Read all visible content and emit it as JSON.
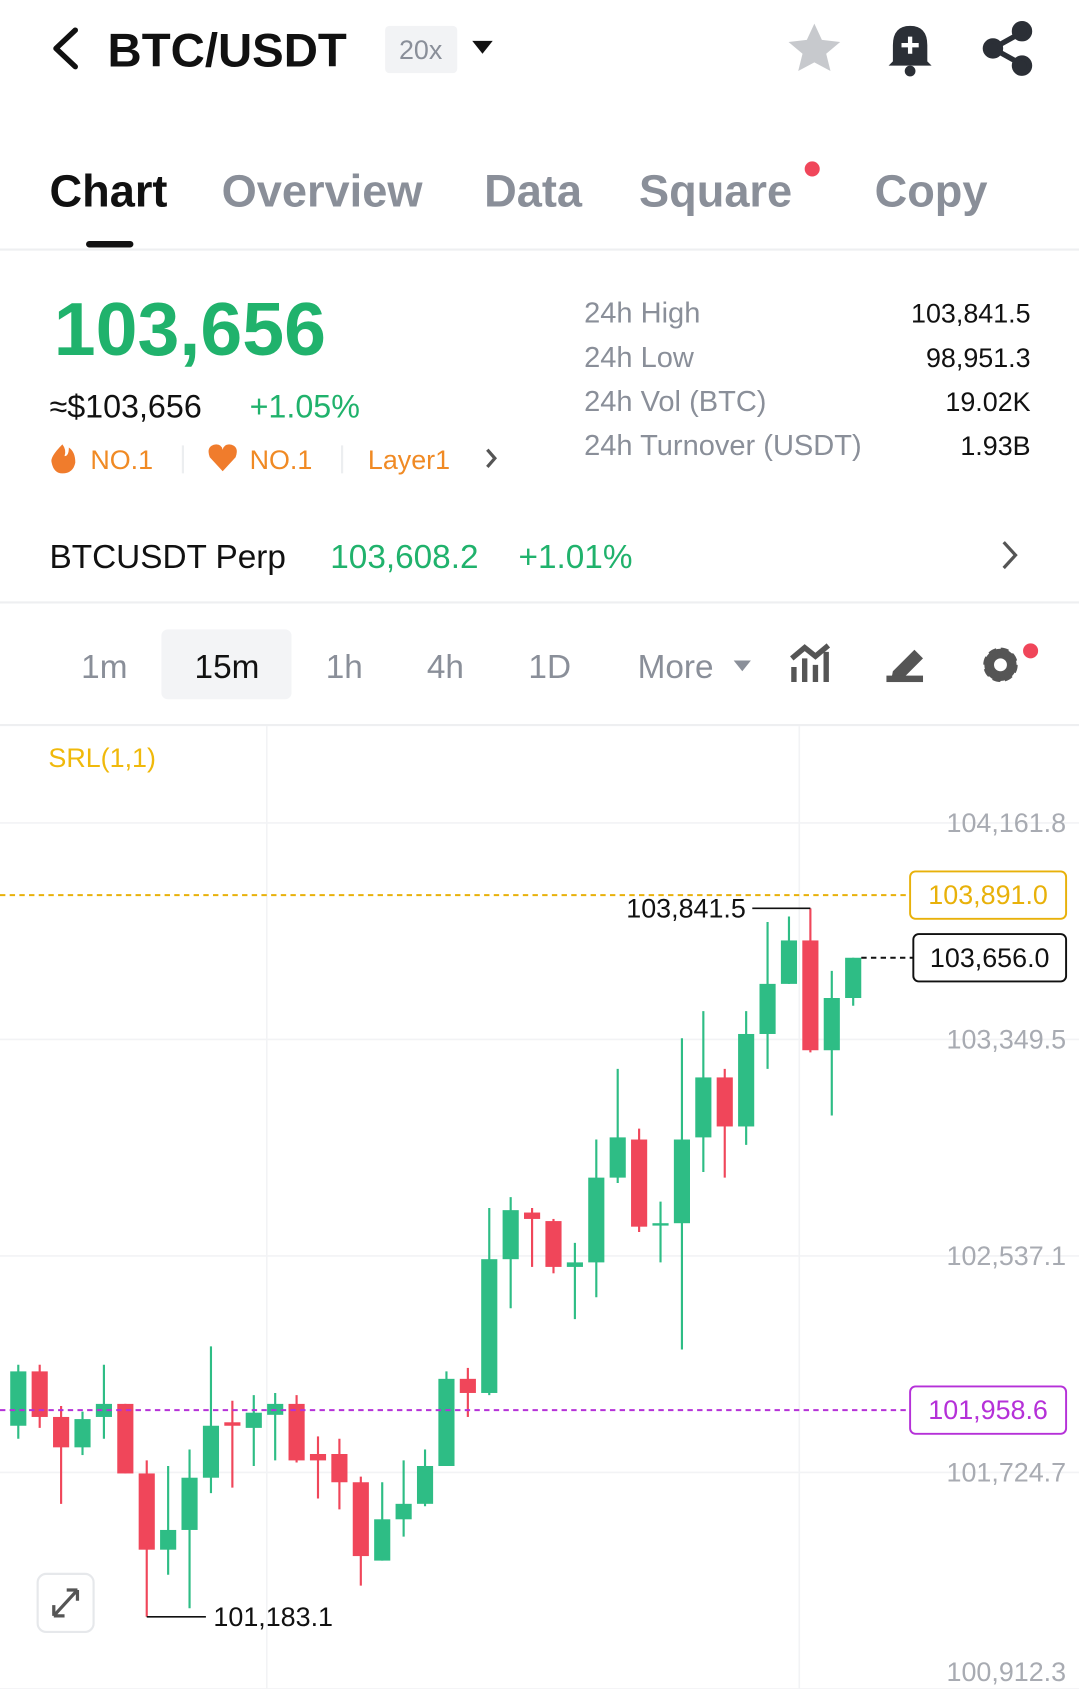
{
  "header": {
    "pair": "BTC/USDT",
    "leverage": "20x"
  },
  "tabs": [
    "Chart",
    "Overview",
    "Data",
    "Square",
    "Copy"
  ],
  "price": {
    "last": "103,656",
    "usd": "≈$103,656",
    "change": "+1.05%",
    "badges": [
      "NO.1",
      "NO.1",
      "Layer1"
    ]
  },
  "stats": [
    {
      "label": "24h High",
      "value": "103,841.5"
    },
    {
      "label": "24h Low",
      "value": "98,951.3"
    },
    {
      "label": "24h Vol (BTC)",
      "value": "19.02K"
    },
    {
      "label": "24h Turnover (USDT)",
      "value": "1.93B"
    }
  ],
  "perp": {
    "name": "BTCUSDT Perp",
    "price": "103,608.2",
    "change": "+1.01%"
  },
  "intervals": [
    "1m",
    "15m",
    "1h",
    "4h",
    "1D",
    "More"
  ],
  "chart_data": {
    "type": "candlestick",
    "indicator": "SRL(1,1)",
    "up_color": "#2ebd85",
    "down_color": "#f0465a",
    "ylim": [
      100912.3,
      104525
    ],
    "yticks": [
      {
        "value": 104161.8,
        "label": "104,161.8"
      },
      {
        "value": 103349.5,
        "label": "103,349.5"
      },
      {
        "value": 102537.1,
        "label": "102,537.1"
      },
      {
        "value": 101724.7,
        "label": "101,724.7"
      },
      {
        "value": 100912.3,
        "label": "100,912.3"
      }
    ],
    "open": [
      101900,
      102104,
      101933,
      101819,
      101933,
      101982,
      101721,
      101435,
      101509,
      101705,
      101913,
      101892,
      101941,
      101982,
      101794,
      101794,
      101688,
      101394,
      101549,
      101607,
      101749,
      102076,
      102023,
      102525,
      102700,
      102668,
      102496,
      102513,
      102831,
      102974,
      102651,
      102660,
      102982,
      103207,
      103023,
      103370,
      103558,
      103721,
      103309,
      103505
    ],
    "high": [
      102129,
      102129,
      101974,
      101953,
      102129,
      101982,
      101770,
      101749,
      101811,
      102198,
      101994,
      102015,
      102023,
      102015,
      101860,
      101851,
      101709,
      101688,
      101770,
      101811,
      102104,
      102117,
      102717,
      102758,
      102717,
      102676,
      102586,
      102974,
      103239,
      103015,
      102741,
      103354,
      103456,
      103239,
      103456,
      103790,
      103811,
      103841.5,
      103607,
      103656
    ],
    "low": [
      101851,
      101892,
      101607,
      101790,
      101851,
      101721,
      101183.1,
      101341,
      101215,
      101647,
      101668,
      101749,
      101770,
      101762,
      101627,
      101586,
      101300,
      101394,
      101484,
      101598,
      101749,
      101933,
      102015,
      102341,
      102496,
      102472,
      102300,
      102382,
      102811,
      102627,
      102513,
      102186,
      102852,
      102831,
      102954,
      103239,
      103558,
      103301,
      103064,
      103476
    ],
    "close": [
      102104,
      101933,
      101819,
      101925,
      101982,
      101721,
      101435,
      101509,
      101705,
      101900,
      101900,
      101949,
      101982,
      101770,
      101770,
      101688,
      101411,
      101549,
      101607,
      101749,
      102076,
      102023,
      102525,
      102709,
      102676,
      102496,
      102513,
      102831,
      102982,
      102647,
      102660,
      102974,
      103207,
      103023,
      103370,
      103558,
      103721,
      103309,
      103505,
      103656
    ],
    "price_lines": [
      {
        "value": 103891,
        "label": "103,891.0",
        "color": "#e8b10a"
      },
      {
        "value": 103656,
        "label": "103,656.0",
        "color": "#111111"
      },
      {
        "value": 101958.6,
        "label": "101,958.6",
        "color": "#b531d8"
      }
    ],
    "high_mark": {
      "value": 103841.5,
      "label": "103,841.5"
    },
    "low_mark": {
      "value": 101183.1,
      "label": "101,183.1"
    }
  }
}
